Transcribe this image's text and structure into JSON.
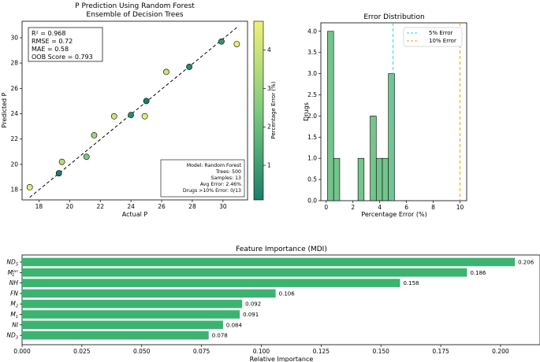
{
  "chart_data": [
    {
      "type": "scatter",
      "title_line1": "P Prediction Using Random Forest",
      "title_line2": "Ensemble of Decision Trees",
      "xlabel": "Actual P",
      "ylabel": "Predicted P",
      "xlim": [
        16.9,
        31.6
      ],
      "ylim": [
        17.2,
        31.3
      ],
      "xticks": [
        18,
        20,
        22,
        24,
        26,
        28,
        30
      ],
      "yticks": [
        18,
        20,
        22,
        24,
        26,
        28,
        30
      ],
      "trend_line": {
        "x": [
          17.4,
          31.0
        ],
        "y": [
          17.4,
          30.9
        ]
      },
      "points": [
        {
          "x": 17.4,
          "y": 18.2,
          "err": 4.5
        },
        {
          "x": 19.3,
          "y": 19.3,
          "err": 0.1
        },
        {
          "x": 19.5,
          "y": 20.2,
          "err": 3.6
        },
        {
          "x": 21.1,
          "y": 20.6,
          "err": 2.4
        },
        {
          "x": 21.6,
          "y": 22.3,
          "err": 3.1
        },
        {
          "x": 22.9,
          "y": 23.8,
          "err": 4.0
        },
        {
          "x": 24.0,
          "y": 23.9,
          "err": 0.5
        },
        {
          "x": 24.9,
          "y": 23.8,
          "err": 4.5
        },
        {
          "x": 25.0,
          "y": 25.0,
          "err": 0.1
        },
        {
          "x": 26.3,
          "y": 27.3,
          "err": 3.9
        },
        {
          "x": 27.8,
          "y": 27.7,
          "err": 0.4
        },
        {
          "x": 29.9,
          "y": 29.7,
          "err": 0.7
        },
        {
          "x": 30.9,
          "y": 29.5,
          "err": 4.6
        }
      ],
      "metrics": [
        "R² = 0.968",
        "RMSE = 0.72",
        "MAE = 0.58",
        "OOB Score = 0.793"
      ],
      "model_info": [
        "Model: Random Forest",
        "Trees: 500",
        "Samples: 13",
        "Avg Error: 2.46%",
        "Drugs >10% Error: 0/13"
      ],
      "colorbar": {
        "label": "Percentage Error (%)",
        "ticks": [
          1,
          2,
          3,
          4
        ],
        "range": [
          0.1,
          4.75
        ],
        "colors": [
          "#1b7f68",
          "#7fc97f",
          "#f0f07a"
        ]
      }
    },
    {
      "type": "histogram",
      "title": "Error Distribution",
      "xlabel": "Percentage Error (%)",
      "ylabel": "Drugs",
      "xlim": [
        -0.4,
        10.5
      ],
      "ylim": [
        0,
        4.2
      ],
      "xticks": [
        0,
        2,
        4,
        6,
        8,
        10
      ],
      "yticks": [
        "0.0",
        "0.5",
        "1.0",
        "1.5",
        "2.0",
        "2.5",
        "3.0",
        "3.5",
        "4.0"
      ],
      "bin_width": 0.455,
      "bins": [
        {
          "start": 0.1,
          "count": 4
        },
        {
          "start": 0.555,
          "count": 1
        },
        {
          "start": 2.375,
          "count": 1
        },
        {
          "start": 3.285,
          "count": 2
        },
        {
          "start": 3.74,
          "count": 1
        },
        {
          "start": 4.195,
          "count": 1
        },
        {
          "start": 4.65,
          "count": 3
        }
      ],
      "reference_lines": [
        {
          "x": 5,
          "label": "5% Error",
          "color": "#22d3ee"
        },
        {
          "x": 10,
          "label": "10% Error",
          "color": "#f59e0b"
        }
      ]
    },
    {
      "type": "barh",
      "title": "Feature Importance (MDI)",
      "xlabel": "Relative Importance",
      "xlim": [
        0,
        0.2165
      ],
      "xticks": [
        "0.000",
        "0.025",
        "0.050",
        "0.075",
        "0.100",
        "0.125",
        "0.150",
        "0.175",
        "0.200"
      ],
      "categories": [
        {
          "base": "ND",
          "sub": "5",
          "sup": "",
          "value": 0.206,
          "label": "0.206"
        },
        {
          "base": "M",
          "sub": "1",
          "sup": "ion",
          "value": 0.186,
          "label": "0.186"
        },
        {
          "base": "NH",
          "sub": "",
          "sup": "",
          "value": 0.158,
          "label": "0.158"
        },
        {
          "base": "FN",
          "sub": "",
          "sup": "",
          "value": 0.106,
          "label": "0.106"
        },
        {
          "base": "M",
          "sub": "2",
          "sup": "",
          "value": 0.092,
          "label": "0.092"
        },
        {
          "base": "M",
          "sub": "1",
          "sup": "",
          "value": 0.091,
          "label": "0.091"
        },
        {
          "base": "NI",
          "sub": "",
          "sup": "",
          "value": 0.084,
          "label": "0.084"
        },
        {
          "base": "ND",
          "sub": "3",
          "sup": "",
          "value": 0.078,
          "label": "0.078"
        }
      ]
    }
  ]
}
